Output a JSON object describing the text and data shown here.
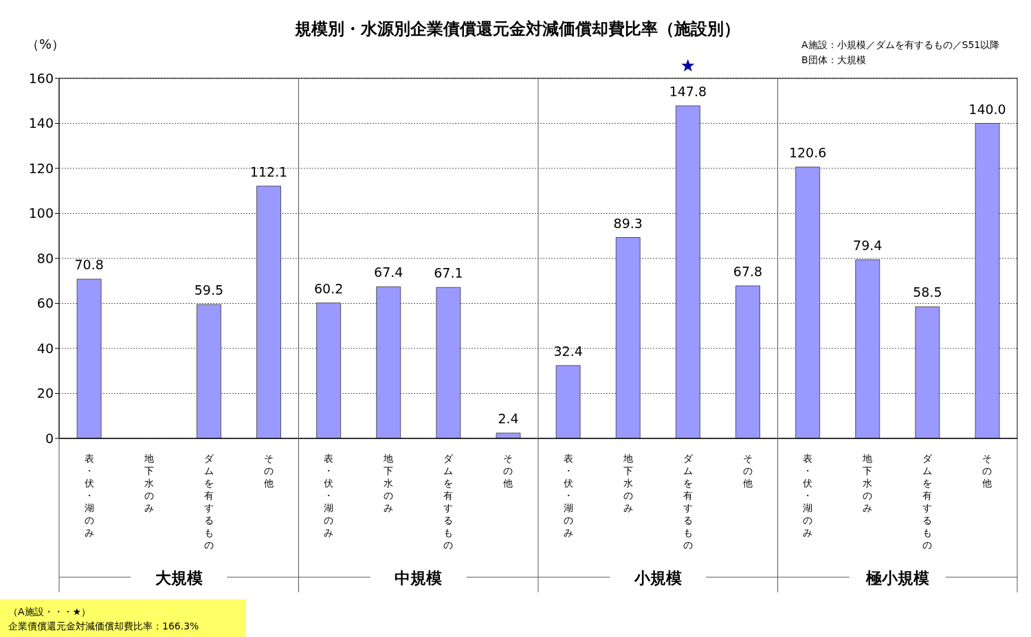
{
  "chart_data": {
    "type": "bar",
    "title": "規模別・水源別企業債償還元金対減価償却費比率（施設別）",
    "ylabel": "（%）",
    "categories": [
      "表・伏・湖のみ",
      "地下水のみ",
      "ダムを有するもの",
      "その他",
      "表・伏・湖のみ",
      "地下水のみ",
      "ダムを有するもの",
      "その他",
      "表・伏・湖のみ",
      "地下水のみ",
      "ダムを有するもの",
      "その他",
      "表・伏・湖のみ",
      "地下水のみ",
      "ダムを有するもの",
      "その他"
    ],
    "values": [
      70.8,
      null,
      59.5,
      112.1,
      60.2,
      67.4,
      67.1,
      2.4,
      32.4,
      89.3,
      147.8,
      67.8,
      120.6,
      79.4,
      58.5,
      140.0
    ],
    "value_labels": [
      "70.8",
      null,
      "59.5",
      "112.1",
      "60.2",
      "67.4",
      "67.1",
      "2.4",
      "32.4",
      "89.3",
      "147.8",
      "67.8",
      "120.6",
      "79.4",
      "58.5",
      "140.0"
    ],
    "color": "#9999ff",
    "ylim": [
      0,
      160
    ],
    "yticks": [
      0,
      20,
      40,
      60,
      80,
      100,
      120,
      140,
      160
    ],
    "grid": "y",
    "annotations": [
      "A施設：小規模／ダムを有するもの／S51以降",
      "B団体：大規模",
      "（A施設・・・★）",
      "企業債償還元金対減価償却費比率：166.3%",
      "大規模",
      "中規模",
      "小規模",
      "極小規模"
    ]
  }
}
